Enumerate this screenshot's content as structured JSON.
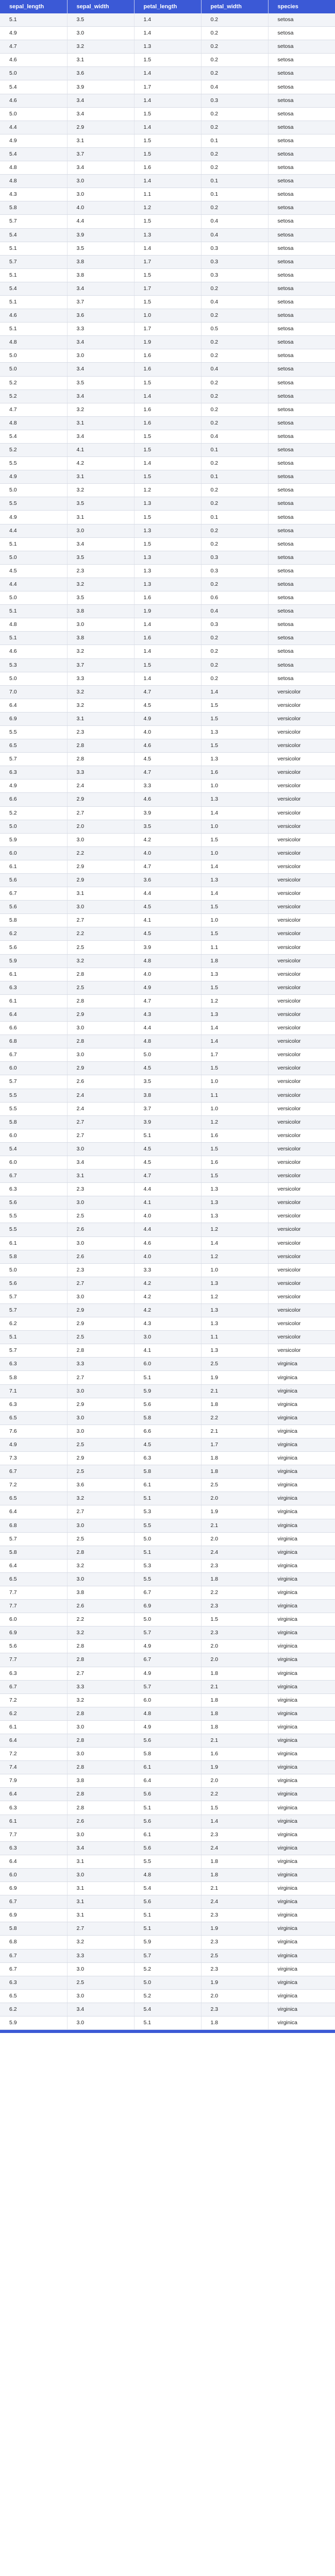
{
  "table": {
    "columns": [
      "sepal_length",
      "sepal_width",
      "petal_length",
      "petal_width",
      "species"
    ],
    "rows": [
      [
        "5.1",
        "3.5",
        "1.4",
        "0.2",
        "setosa"
      ],
      [
        "4.9",
        "3.0",
        "1.4",
        "0.2",
        "setosa"
      ],
      [
        "4.7",
        "3.2",
        "1.3",
        "0.2",
        "setosa"
      ],
      [
        "4.6",
        "3.1",
        "1.5",
        "0.2",
        "setosa"
      ],
      [
        "5.0",
        "3.6",
        "1.4",
        "0.2",
        "setosa"
      ],
      [
        "5.4",
        "3.9",
        "1.7",
        "0.4",
        "setosa"
      ],
      [
        "4.6",
        "3.4",
        "1.4",
        "0.3",
        "setosa"
      ],
      [
        "5.0",
        "3.4",
        "1.5",
        "0.2",
        "setosa"
      ],
      [
        "4.4",
        "2.9",
        "1.4",
        "0.2",
        "setosa"
      ],
      [
        "4.9",
        "3.1",
        "1.5",
        "0.1",
        "setosa"
      ],
      [
        "5.4",
        "3.7",
        "1.5",
        "0.2",
        "setosa"
      ],
      [
        "4.8",
        "3.4",
        "1.6",
        "0.2",
        "setosa"
      ],
      [
        "4.8",
        "3.0",
        "1.4",
        "0.1",
        "setosa"
      ],
      [
        "4.3",
        "3.0",
        "1.1",
        "0.1",
        "setosa"
      ],
      [
        "5.8",
        "4.0",
        "1.2",
        "0.2",
        "setosa"
      ],
      [
        "5.7",
        "4.4",
        "1.5",
        "0.4",
        "setosa"
      ],
      [
        "5.4",
        "3.9",
        "1.3",
        "0.4",
        "setosa"
      ],
      [
        "5.1",
        "3.5",
        "1.4",
        "0.3",
        "setosa"
      ],
      [
        "5.7",
        "3.8",
        "1.7",
        "0.3",
        "setosa"
      ],
      [
        "5.1",
        "3.8",
        "1.5",
        "0.3",
        "setosa"
      ],
      [
        "5.4",
        "3.4",
        "1.7",
        "0.2",
        "setosa"
      ],
      [
        "5.1",
        "3.7",
        "1.5",
        "0.4",
        "setosa"
      ],
      [
        "4.6",
        "3.6",
        "1.0",
        "0.2",
        "setosa"
      ],
      [
        "5.1",
        "3.3",
        "1.7",
        "0.5",
        "setosa"
      ],
      [
        "4.8",
        "3.4",
        "1.9",
        "0.2",
        "setosa"
      ],
      [
        "5.0",
        "3.0",
        "1.6",
        "0.2",
        "setosa"
      ],
      [
        "5.0",
        "3.4",
        "1.6",
        "0.4",
        "setosa"
      ],
      [
        "5.2",
        "3.5",
        "1.5",
        "0.2",
        "setosa"
      ],
      [
        "5.2",
        "3.4",
        "1.4",
        "0.2",
        "setosa"
      ],
      [
        "4.7",
        "3.2",
        "1.6",
        "0.2",
        "setosa"
      ],
      [
        "4.8",
        "3.1",
        "1.6",
        "0.2",
        "setosa"
      ],
      [
        "5.4",
        "3.4",
        "1.5",
        "0.4",
        "setosa"
      ],
      [
        "5.2",
        "4.1",
        "1.5",
        "0.1",
        "setosa"
      ],
      [
        "5.5",
        "4.2",
        "1.4",
        "0.2",
        "setosa"
      ],
      [
        "4.9",
        "3.1",
        "1.5",
        "0.1",
        "setosa"
      ],
      [
        "5.0",
        "3.2",
        "1.2",
        "0.2",
        "setosa"
      ],
      [
        "5.5",
        "3.5",
        "1.3",
        "0.2",
        "setosa"
      ],
      [
        "4.9",
        "3.1",
        "1.5",
        "0.1",
        "setosa"
      ],
      [
        "4.4",
        "3.0",
        "1.3",
        "0.2",
        "setosa"
      ],
      [
        "5.1",
        "3.4",
        "1.5",
        "0.2",
        "setosa"
      ],
      [
        "5.0",
        "3.5",
        "1.3",
        "0.3",
        "setosa"
      ],
      [
        "4.5",
        "2.3",
        "1.3",
        "0.3",
        "setosa"
      ],
      [
        "4.4",
        "3.2",
        "1.3",
        "0.2",
        "setosa"
      ],
      [
        "5.0",
        "3.5",
        "1.6",
        "0.6",
        "setosa"
      ],
      [
        "5.1",
        "3.8",
        "1.9",
        "0.4",
        "setosa"
      ],
      [
        "4.8",
        "3.0",
        "1.4",
        "0.3",
        "setosa"
      ],
      [
        "5.1",
        "3.8",
        "1.6",
        "0.2",
        "setosa"
      ],
      [
        "4.6",
        "3.2",
        "1.4",
        "0.2",
        "setosa"
      ],
      [
        "5.3",
        "3.7",
        "1.5",
        "0.2",
        "setosa"
      ],
      [
        "5.0",
        "3.3",
        "1.4",
        "0.2",
        "setosa"
      ],
      [
        "7.0",
        "3.2",
        "4.7",
        "1.4",
        "versicolor"
      ],
      [
        "6.4",
        "3.2",
        "4.5",
        "1.5",
        "versicolor"
      ],
      [
        "6.9",
        "3.1",
        "4.9",
        "1.5",
        "versicolor"
      ],
      [
        "5.5",
        "2.3",
        "4.0",
        "1.3",
        "versicolor"
      ],
      [
        "6.5",
        "2.8",
        "4.6",
        "1.5",
        "versicolor"
      ],
      [
        "5.7",
        "2.8",
        "4.5",
        "1.3",
        "versicolor"
      ],
      [
        "6.3",
        "3.3",
        "4.7",
        "1.6",
        "versicolor"
      ],
      [
        "4.9",
        "2.4",
        "3.3",
        "1.0",
        "versicolor"
      ],
      [
        "6.6",
        "2.9",
        "4.6",
        "1.3",
        "versicolor"
      ],
      [
        "5.2",
        "2.7",
        "3.9",
        "1.4",
        "versicolor"
      ],
      [
        "5.0",
        "2.0",
        "3.5",
        "1.0",
        "versicolor"
      ],
      [
        "5.9",
        "3.0",
        "4.2",
        "1.5",
        "versicolor"
      ],
      [
        "6.0",
        "2.2",
        "4.0",
        "1.0",
        "versicolor"
      ],
      [
        "6.1",
        "2.9",
        "4.7",
        "1.4",
        "versicolor"
      ],
      [
        "5.6",
        "2.9",
        "3.6",
        "1.3",
        "versicolor"
      ],
      [
        "6.7",
        "3.1",
        "4.4",
        "1.4",
        "versicolor"
      ],
      [
        "5.6",
        "3.0",
        "4.5",
        "1.5",
        "versicolor"
      ],
      [
        "5.8",
        "2.7",
        "4.1",
        "1.0",
        "versicolor"
      ],
      [
        "6.2",
        "2.2",
        "4.5",
        "1.5",
        "versicolor"
      ],
      [
        "5.6",
        "2.5",
        "3.9",
        "1.1",
        "versicolor"
      ],
      [
        "5.9",
        "3.2",
        "4.8",
        "1.8",
        "versicolor"
      ],
      [
        "6.1",
        "2.8",
        "4.0",
        "1.3",
        "versicolor"
      ],
      [
        "6.3",
        "2.5",
        "4.9",
        "1.5",
        "versicolor"
      ],
      [
        "6.1",
        "2.8",
        "4.7",
        "1.2",
        "versicolor"
      ],
      [
        "6.4",
        "2.9",
        "4.3",
        "1.3",
        "versicolor"
      ],
      [
        "6.6",
        "3.0",
        "4.4",
        "1.4",
        "versicolor"
      ],
      [
        "6.8",
        "2.8",
        "4.8",
        "1.4",
        "versicolor"
      ],
      [
        "6.7",
        "3.0",
        "5.0",
        "1.7",
        "versicolor"
      ],
      [
        "6.0",
        "2.9",
        "4.5",
        "1.5",
        "versicolor"
      ],
      [
        "5.7",
        "2.6",
        "3.5",
        "1.0",
        "versicolor"
      ],
      [
        "5.5",
        "2.4",
        "3.8",
        "1.1",
        "versicolor"
      ],
      [
        "5.5",
        "2.4",
        "3.7",
        "1.0",
        "versicolor"
      ],
      [
        "5.8",
        "2.7",
        "3.9",
        "1.2",
        "versicolor"
      ],
      [
        "6.0",
        "2.7",
        "5.1",
        "1.6",
        "versicolor"
      ],
      [
        "5.4",
        "3.0",
        "4.5",
        "1.5",
        "versicolor"
      ],
      [
        "6.0",
        "3.4",
        "4.5",
        "1.6",
        "versicolor"
      ],
      [
        "6.7",
        "3.1",
        "4.7",
        "1.5",
        "versicolor"
      ],
      [
        "6.3",
        "2.3",
        "4.4",
        "1.3",
        "versicolor"
      ],
      [
        "5.6",
        "3.0",
        "4.1",
        "1.3",
        "versicolor"
      ],
      [
        "5.5",
        "2.5",
        "4.0",
        "1.3",
        "versicolor"
      ],
      [
        "5.5",
        "2.6",
        "4.4",
        "1.2",
        "versicolor"
      ],
      [
        "6.1",
        "3.0",
        "4.6",
        "1.4",
        "versicolor"
      ],
      [
        "5.8",
        "2.6",
        "4.0",
        "1.2",
        "versicolor"
      ],
      [
        "5.0",
        "2.3",
        "3.3",
        "1.0",
        "versicolor"
      ],
      [
        "5.6",
        "2.7",
        "4.2",
        "1.3",
        "versicolor"
      ],
      [
        "5.7",
        "3.0",
        "4.2",
        "1.2",
        "versicolor"
      ],
      [
        "5.7",
        "2.9",
        "4.2",
        "1.3",
        "versicolor"
      ],
      [
        "6.2",
        "2.9",
        "4.3",
        "1.3",
        "versicolor"
      ],
      [
        "5.1",
        "2.5",
        "3.0",
        "1.1",
        "versicolor"
      ],
      [
        "5.7",
        "2.8",
        "4.1",
        "1.3",
        "versicolor"
      ],
      [
        "6.3",
        "3.3",
        "6.0",
        "2.5",
        "virginica"
      ],
      [
        "5.8",
        "2.7",
        "5.1",
        "1.9",
        "virginica"
      ],
      [
        "7.1",
        "3.0",
        "5.9",
        "2.1",
        "virginica"
      ],
      [
        "6.3",
        "2.9",
        "5.6",
        "1.8",
        "virginica"
      ],
      [
        "6.5",
        "3.0",
        "5.8",
        "2.2",
        "virginica"
      ],
      [
        "7.6",
        "3.0",
        "6.6",
        "2.1",
        "virginica"
      ],
      [
        "4.9",
        "2.5",
        "4.5",
        "1.7",
        "virginica"
      ],
      [
        "7.3",
        "2.9",
        "6.3",
        "1.8",
        "virginica"
      ],
      [
        "6.7",
        "2.5",
        "5.8",
        "1.8",
        "virginica"
      ],
      [
        "7.2",
        "3.6",
        "6.1",
        "2.5",
        "virginica"
      ],
      [
        "6.5",
        "3.2",
        "5.1",
        "2.0",
        "virginica"
      ],
      [
        "6.4",
        "2.7",
        "5.3",
        "1.9",
        "virginica"
      ],
      [
        "6.8",
        "3.0",
        "5.5",
        "2.1",
        "virginica"
      ],
      [
        "5.7",
        "2.5",
        "5.0",
        "2.0",
        "virginica"
      ],
      [
        "5.8",
        "2.8",
        "5.1",
        "2.4",
        "virginica"
      ],
      [
        "6.4",
        "3.2",
        "5.3",
        "2.3",
        "virginica"
      ],
      [
        "6.5",
        "3.0",
        "5.5",
        "1.8",
        "virginica"
      ],
      [
        "7.7",
        "3.8",
        "6.7",
        "2.2",
        "virginica"
      ],
      [
        "7.7",
        "2.6",
        "6.9",
        "2.3",
        "virginica"
      ],
      [
        "6.0",
        "2.2",
        "5.0",
        "1.5",
        "virginica"
      ],
      [
        "6.9",
        "3.2",
        "5.7",
        "2.3",
        "virginica"
      ],
      [
        "5.6",
        "2.8",
        "4.9",
        "2.0",
        "virginica"
      ],
      [
        "7.7",
        "2.8",
        "6.7",
        "2.0",
        "virginica"
      ],
      [
        "6.3",
        "2.7",
        "4.9",
        "1.8",
        "virginica"
      ],
      [
        "6.7",
        "3.3",
        "5.7",
        "2.1",
        "virginica"
      ],
      [
        "7.2",
        "3.2",
        "6.0",
        "1.8",
        "virginica"
      ],
      [
        "6.2",
        "2.8",
        "4.8",
        "1.8",
        "virginica"
      ],
      [
        "6.1",
        "3.0",
        "4.9",
        "1.8",
        "virginica"
      ],
      [
        "6.4",
        "2.8",
        "5.6",
        "2.1",
        "virginica"
      ],
      [
        "7.2",
        "3.0",
        "5.8",
        "1.6",
        "virginica"
      ],
      [
        "7.4",
        "2.8",
        "6.1",
        "1.9",
        "virginica"
      ],
      [
        "7.9",
        "3.8",
        "6.4",
        "2.0",
        "virginica"
      ],
      [
        "6.4",
        "2.8",
        "5.6",
        "2.2",
        "virginica"
      ],
      [
        "6.3",
        "2.8",
        "5.1",
        "1.5",
        "virginica"
      ],
      [
        "6.1",
        "2.6",
        "5.6",
        "1.4",
        "virginica"
      ],
      [
        "7.7",
        "3.0",
        "6.1",
        "2.3",
        "virginica"
      ],
      [
        "6.3",
        "3.4",
        "5.6",
        "2.4",
        "virginica"
      ],
      [
        "6.4",
        "3.1",
        "5.5",
        "1.8",
        "virginica"
      ],
      [
        "6.0",
        "3.0",
        "4.8",
        "1.8",
        "virginica"
      ],
      [
        "6.9",
        "3.1",
        "5.4",
        "2.1",
        "virginica"
      ],
      [
        "6.7",
        "3.1",
        "5.6",
        "2.4",
        "virginica"
      ],
      [
        "6.9",
        "3.1",
        "5.1",
        "2.3",
        "virginica"
      ],
      [
        "5.8",
        "2.7",
        "5.1",
        "1.9",
        "virginica"
      ],
      [
        "6.8",
        "3.2",
        "5.9",
        "2.3",
        "virginica"
      ],
      [
        "6.7",
        "3.3",
        "5.7",
        "2.5",
        "virginica"
      ],
      [
        "6.7",
        "3.0",
        "5.2",
        "2.3",
        "virginica"
      ],
      [
        "6.3",
        "2.5",
        "5.0",
        "1.9",
        "virginica"
      ],
      [
        "6.5",
        "3.0",
        "5.2",
        "2.0",
        "virginica"
      ],
      [
        "6.2",
        "3.4",
        "5.4",
        "2.3",
        "virginica"
      ],
      [
        "5.9",
        "3.0",
        "5.1",
        "1.8",
        "virginica"
      ]
    ]
  }
}
